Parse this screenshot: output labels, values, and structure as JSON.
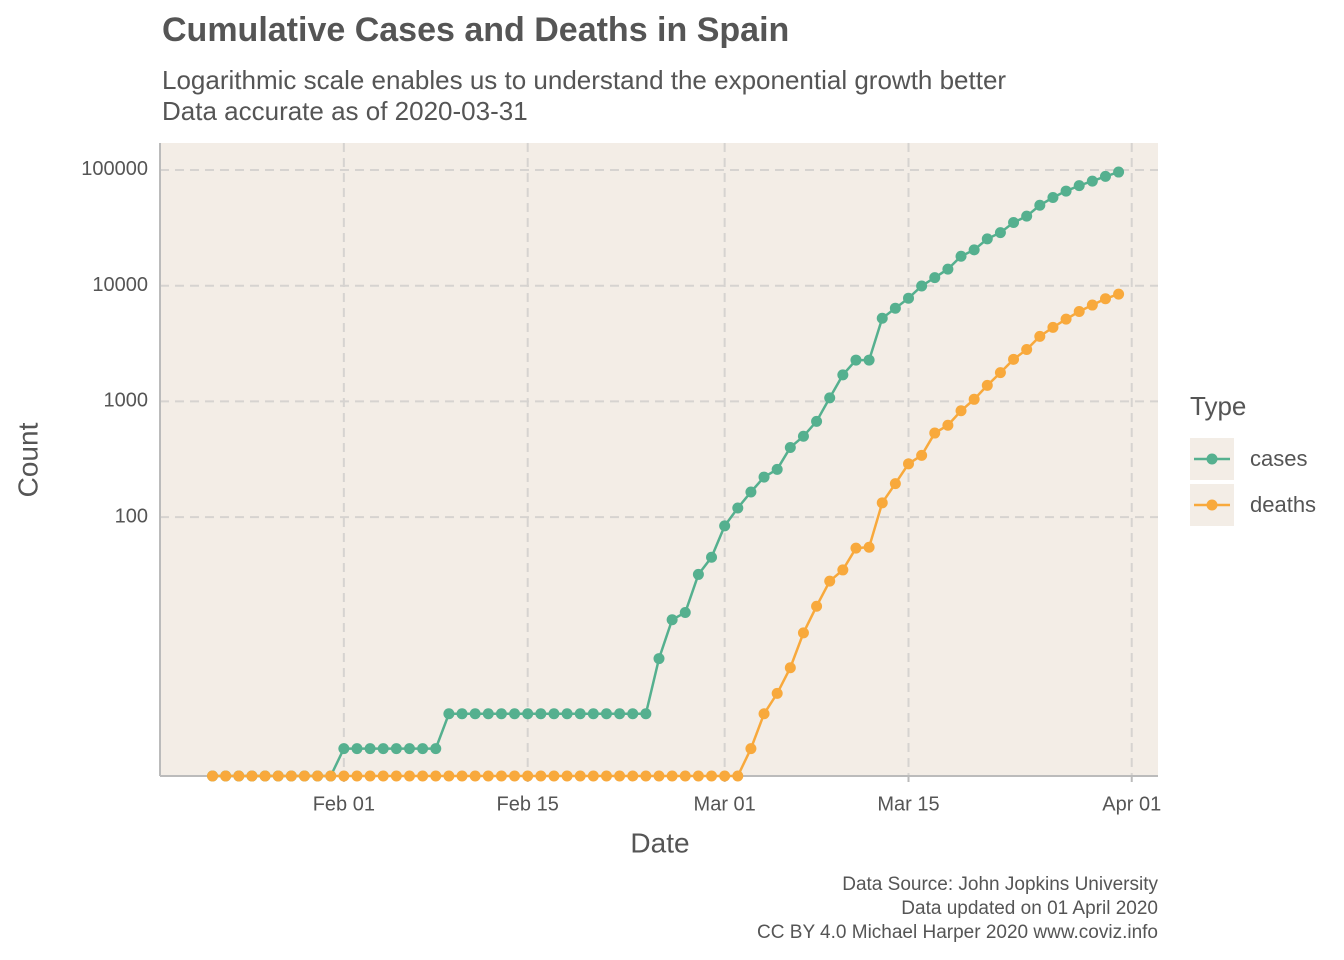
{
  "chart_data": {
    "type": "line",
    "title": "Cumulative Cases and Deaths in Spain",
    "subtitle": [
      "Logarithmic scale enables us to understand the exponential growth better",
      "Data accurate as of 2020-03-31"
    ],
    "x_label": "Date",
    "y_label": "Count",
    "x": [
      "Jan 22",
      "Jan 23",
      "Jan 24",
      "Jan 25",
      "Jan 26",
      "Jan 27",
      "Jan 28",
      "Jan 29",
      "Jan 30",
      "Jan 31",
      "Feb 01",
      "Feb 02",
      "Feb 03",
      "Feb 04",
      "Feb 05",
      "Feb 06",
      "Feb 07",
      "Feb 08",
      "Feb 09",
      "Feb 10",
      "Feb 11",
      "Feb 12",
      "Feb 13",
      "Feb 14",
      "Feb 15",
      "Feb 16",
      "Feb 17",
      "Feb 18",
      "Feb 19",
      "Feb 20",
      "Feb 21",
      "Feb 22",
      "Feb 23",
      "Feb 24",
      "Feb 25",
      "Feb 26",
      "Feb 27",
      "Feb 28",
      "Feb 29",
      "Mar 01",
      "Mar 02",
      "Mar 03",
      "Mar 04",
      "Mar 05",
      "Mar 06",
      "Mar 07",
      "Mar 08",
      "Mar 09",
      "Mar 10",
      "Mar 11",
      "Mar 12",
      "Mar 13",
      "Mar 14",
      "Mar 15",
      "Mar 16",
      "Mar 17",
      "Mar 18",
      "Mar 19",
      "Mar 20",
      "Mar 21",
      "Mar 22",
      "Mar 23",
      "Mar 24",
      "Mar 25",
      "Mar 26",
      "Mar 27",
      "Mar 28",
      "Mar 29",
      "Mar 30",
      "Mar 31"
    ],
    "xlim": [
      "Jan 18",
      "Apr 03"
    ],
    "xticks": [
      "Feb 01",
      "Feb 15",
      "Mar 01",
      "Mar 15",
      "Apr 01"
    ],
    "ylim": [
      0.58,
      171000
    ],
    "yticks": [
      100,
      1000,
      10000,
      100000
    ],
    "y_scale": "log",
    "grid": true,
    "background": "#f3ede6",
    "legend_title": "Type",
    "legend_position": "right",
    "series": [
      {
        "name": "cases",
        "color": "#55b08f",
        "values": [
          0,
          0,
          0,
          0,
          0,
          0,
          0,
          0,
          0,
          0,
          1,
          1,
          1,
          1,
          1,
          1,
          1,
          1,
          2,
          2,
          2,
          2,
          2,
          2,
          2,
          2,
          2,
          2,
          2,
          2,
          2,
          2,
          2,
          2,
          6,
          13,
          15,
          32,
          45,
          84,
          120,
          165,
          222,
          259,
          400,
          500,
          673,
          1073,
          1695,
          2277,
          2277,
          5232,
          6391,
          7798,
          9942,
          11748,
          13910,
          17963,
          20410,
          25374,
          28768,
          35136,
          39885,
          49515,
          57786,
          65719,
          73235,
          80110,
          87956,
          95923
        ]
      },
      {
        "name": "deaths",
        "color": "#f8a93c",
        "values": [
          0,
          0,
          0,
          0,
          0,
          0,
          0,
          0,
          0,
          0,
          0,
          0,
          0,
          0,
          0,
          0,
          0,
          0,
          0,
          0,
          0,
          0,
          0,
          0,
          0,
          0,
          0,
          0,
          0,
          0,
          0,
          0,
          0,
          0,
          0,
          0,
          0,
          0,
          0,
          0,
          0,
          1,
          2,
          3,
          5,
          10,
          17,
          28,
          35,
          54,
          55,
          133,
          195,
          289,
          342,
          533,
          623,
          830,
          1043,
          1375,
          1772,
          2311,
          2808,
          3647,
          4365,
          5138,
          5982,
          6803,
          7716,
          8464
        ]
      }
    ],
    "caption": [
      "Data Source: John Jopkins University",
      "Data updated on 01 April 2020",
      "CC BY 4.0 Michael Harper 2020 www.coviz.info"
    ]
  }
}
